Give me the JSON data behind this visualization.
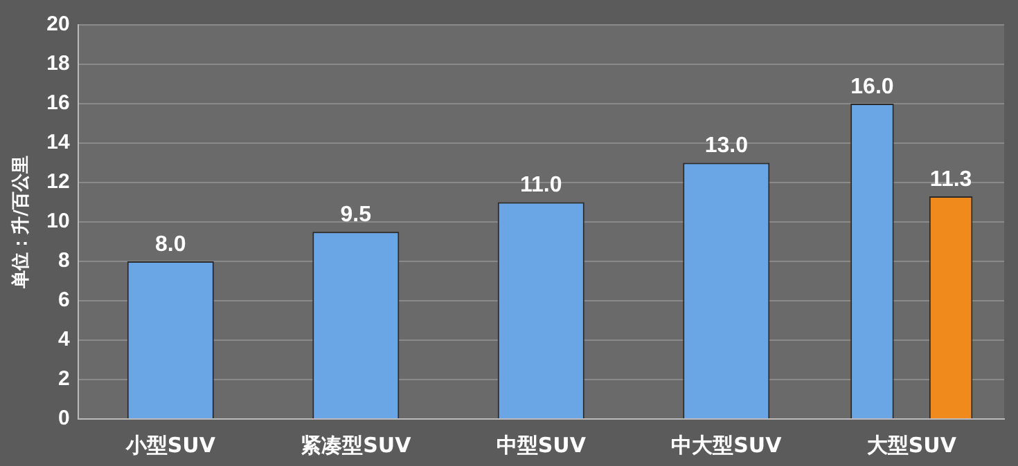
{
  "chart_data": {
    "type": "bar",
    "ylabel": "单位：升/百公里",
    "categories": [
      "小型SUV",
      "紧凑型SUV",
      "中型SUV",
      "中大型SUV",
      "大型SUV"
    ],
    "series": [
      {
        "color": "#6aa6e6",
        "values": [
          8.0,
          9.5,
          11.0,
          13.0,
          16.0
        ],
        "value_labels": [
          "8.0",
          "9.5",
          "11.0",
          "13.0",
          "16.0"
        ]
      },
      {
        "color": "#f08a1c",
        "values": [
          null,
          null,
          null,
          null,
          11.3
        ],
        "value_labels": [
          null,
          null,
          null,
          null,
          "11.3"
        ]
      }
    ],
    "ylim": [
      0,
      20
    ],
    "yticks": [
      0,
      2,
      4,
      6,
      8,
      10,
      12,
      14,
      16,
      18,
      20
    ],
    "grid": "y",
    "legend": false
  }
}
